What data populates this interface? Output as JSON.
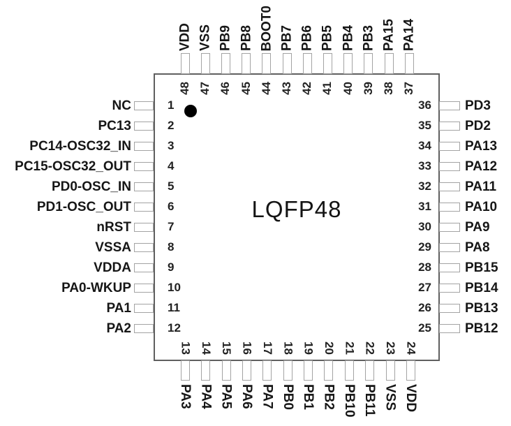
{
  "chip": {
    "package_label": "LQFP48"
  },
  "pins": {
    "left": [
      {
        "num": "1",
        "label": "NC"
      },
      {
        "num": "2",
        "label": "PC13"
      },
      {
        "num": "3",
        "label": "PC14-OSC32_IN"
      },
      {
        "num": "4",
        "label": "PC15-OSC32_OUT"
      },
      {
        "num": "5",
        "label": "PD0-OSC_IN"
      },
      {
        "num": "6",
        "label": "PD1-OSC_OUT"
      },
      {
        "num": "7",
        "label": "nRST"
      },
      {
        "num": "8",
        "label": "VSSA"
      },
      {
        "num": "9",
        "label": "VDDA"
      },
      {
        "num": "10",
        "label": "PA0-WKUP"
      },
      {
        "num": "11",
        "label": "PA1"
      },
      {
        "num": "12",
        "label": "PA2"
      }
    ],
    "top": [
      {
        "num": "48",
        "label": "VDD"
      },
      {
        "num": "47",
        "label": "VSS"
      },
      {
        "num": "46",
        "label": "PB9"
      },
      {
        "num": "45",
        "label": "PB8"
      },
      {
        "num": "44",
        "label": "BOOT0"
      },
      {
        "num": "43",
        "label": "PB7"
      },
      {
        "num": "42",
        "label": "PB6"
      },
      {
        "num": "41",
        "label": "PB5"
      },
      {
        "num": "40",
        "label": "PB4"
      },
      {
        "num": "39",
        "label": "PB3"
      },
      {
        "num": "38",
        "label": "PA15"
      },
      {
        "num": "37",
        "label": "PA14"
      }
    ],
    "right": [
      {
        "num": "36",
        "label": "PD3"
      },
      {
        "num": "35",
        "label": "PD2"
      },
      {
        "num": "34",
        "label": "PA13"
      },
      {
        "num": "33",
        "label": "PA12"
      },
      {
        "num": "32",
        "label": "PA11"
      },
      {
        "num": "31",
        "label": "PA10"
      },
      {
        "num": "30",
        "label": "PA9"
      },
      {
        "num": "29",
        "label": "PA8"
      },
      {
        "num": "28",
        "label": "PB15"
      },
      {
        "num": "27",
        "label": "PB14"
      },
      {
        "num": "26",
        "label": "PB13"
      },
      {
        "num": "25",
        "label": "PB12"
      }
    ],
    "bottom": [
      {
        "num": "13",
        "label": "PA3"
      },
      {
        "num": "14",
        "label": "PA4"
      },
      {
        "num": "15",
        "label": "PA5"
      },
      {
        "num": "16",
        "label": "PA6"
      },
      {
        "num": "17",
        "label": "PA7"
      },
      {
        "num": "18",
        "label": "PB0"
      },
      {
        "num": "19",
        "label": "PB1"
      },
      {
        "num": "20",
        "label": "PB2"
      },
      {
        "num": "21",
        "label": "PB10"
      },
      {
        "num": "22",
        "label": "PB11"
      },
      {
        "num": "23",
        "label": "VSS"
      },
      {
        "num": "24",
        "label": "VDD"
      }
    ]
  },
  "colors": {
    "background": "#ffffff",
    "body_border": "#5f5f5f",
    "pin_stub_border": "#a3a3a3",
    "text": "#161616",
    "pin1_dot": "#000000"
  }
}
